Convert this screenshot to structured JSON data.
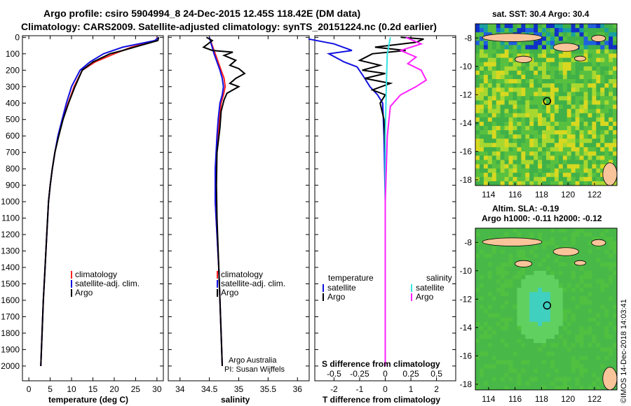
{
  "header": {
    "line1": "Argo profile: csiro 5904994_8 24-Dec-2015 12.45S 118.42E (DM data)",
    "line2": "Climatology: CARS2009. Satellite-adjusted climatology: synTS_20151224.nc (0.2d earlier)"
  },
  "colors": {
    "climatology": "#ff2020",
    "satellite": "#1010e0",
    "argo": "#000000",
    "sat_salinity": "#33e5e5",
    "argo_salinity": "#ff20ff",
    "land": "#f9c49a"
  },
  "depth_ticks": [
    "0",
    "100",
    "200",
    "300",
    "400",
    "500",
    "600",
    "700",
    "800",
    "900",
    "1000",
    "1100",
    "1200",
    "1300",
    "1400",
    "1500",
    "1600",
    "1700",
    "1800",
    "1900",
    "2000"
  ],
  "chart_data": [
    {
      "type": "line",
      "xlabel": "temperature (deg C)",
      "xlim": [
        -1.5,
        31.5
      ],
      "ylim": [
        2090,
        -10
      ],
      "x_ticks": [
        "0",
        "5",
        "10",
        "15",
        "20",
        "25",
        "30"
      ],
      "legend": [
        "climatology",
        "satellite-adj. clim.",
        "Argo"
      ],
      "series": [
        {
          "name": "climatology",
          "values": [
            [
              30.1,
              0
            ],
            [
              29.7,
              20
            ],
            [
              24,
              60
            ],
            [
              20,
              100
            ],
            [
              15.5,
              150
            ],
            [
              12.5,
              200
            ],
            [
              10.6,
              300
            ],
            [
              9.2,
              400
            ],
            [
              7.9,
              500
            ],
            [
              6.9,
              600
            ],
            [
              6.1,
              700
            ],
            [
              5.5,
              800
            ],
            [
              5,
              900
            ],
            [
              4.6,
              1000
            ],
            [
              4.2,
              1200
            ],
            [
              3.8,
              1400
            ],
            [
              3.4,
              1600
            ],
            [
              3.1,
              1800
            ],
            [
              2.8,
              2000
            ]
          ]
        },
        {
          "name": "satellite-adj. clim.",
          "values": [
            [
              30.4,
              0
            ],
            [
              29.5,
              20
            ],
            [
              22,
              60
            ],
            [
              17.5,
              100
            ],
            [
              14.3,
              150
            ],
            [
              12,
              200
            ],
            [
              10,
              300
            ],
            [
              8.8,
              400
            ],
            [
              7.8,
              500
            ],
            [
              6.8,
              600
            ],
            [
              6.1,
              700
            ],
            [
              5.5,
              800
            ],
            [
              5,
              900
            ],
            [
              4.6,
              1000
            ],
            [
              4.2,
              1200
            ],
            [
              3.8,
              1400
            ],
            [
              3.4,
              1600
            ],
            [
              3.1,
              1800
            ],
            [
              2.8,
              2000
            ]
          ]
        },
        {
          "name": "Argo",
          "values": [
            [
              30.4,
              0
            ],
            [
              30.2,
              20
            ],
            [
              26,
              50
            ],
            [
              22,
              80
            ],
            [
              19,
              100
            ],
            [
              15,
              150
            ],
            [
              12.5,
              200
            ],
            [
              10.8,
              300
            ],
            [
              9.3,
              400
            ],
            [
              8,
              500
            ],
            [
              7,
              600
            ],
            [
              6.1,
              700
            ],
            [
              5.5,
              800
            ],
            [
              5,
              900
            ],
            [
              4.6,
              1000
            ],
            [
              4.2,
              1200
            ],
            [
              3.8,
              1400
            ],
            [
              3.4,
              1600
            ],
            [
              3.1,
              1800
            ],
            [
              2.8,
              2000
            ]
          ]
        }
      ]
    },
    {
      "type": "line",
      "xlabel": "salinity",
      "xlim": [
        33.8,
        36.2
      ],
      "ylim": [
        2090,
        -10
      ],
      "x_ticks": [
        "34",
        "34.5",
        "35",
        "35.5",
        "36"
      ],
      "legend": [
        "climatology",
        "satellite-adj. clim.",
        "Argo"
      ],
      "annotation": [
        "Argo Australia",
        "PI: Susan Wijffels"
      ],
      "series": [
        {
          "name": "climatology",
          "values": [
            [
              34.5,
              0
            ],
            [
              34.55,
              50
            ],
            [
              34.6,
              100
            ],
            [
              34.65,
              150
            ],
            [
              34.7,
              200
            ],
            [
              34.75,
              250
            ],
            [
              34.77,
              300
            ],
            [
              34.74,
              350
            ],
            [
              34.7,
              400
            ],
            [
              34.67,
              500
            ],
            [
              34.65,
              600
            ],
            [
              34.6,
              800
            ],
            [
              34.6,
              1000
            ],
            [
              34.63,
              1200
            ],
            [
              34.66,
              1400
            ],
            [
              34.68,
              1600
            ],
            [
              34.7,
              1800
            ],
            [
              34.72,
              2000
            ]
          ]
        },
        {
          "name": "satellite-adj. clim.",
          "values": [
            [
              34.5,
              0
            ],
            [
              34.54,
              50
            ],
            [
              34.58,
              100
            ],
            [
              34.63,
              150
            ],
            [
              34.68,
              200
            ],
            [
              34.72,
              250
            ],
            [
              34.74,
              300
            ],
            [
              34.72,
              350
            ],
            [
              34.68,
              400
            ],
            [
              34.65,
              500
            ],
            [
              34.63,
              600
            ],
            [
              34.6,
              800
            ],
            [
              34.6,
              1000
            ],
            [
              34.63,
              1200
            ],
            [
              34.66,
              1400
            ],
            [
              34.68,
              1600
            ],
            [
              34.7,
              1800
            ],
            [
              34.72,
              2000
            ]
          ]
        },
        {
          "name": "Argo",
          "values": [
            [
              34.45,
              0
            ],
            [
              34.55,
              20
            ],
            [
              34.4,
              60
            ],
            [
              34.55,
              80
            ],
            [
              34.9,
              90
            ],
            [
              34.75,
              110
            ],
            [
              34.95,
              140
            ],
            [
              34.85,
              170
            ],
            [
              35.0,
              190
            ],
            [
              35.1,
              220
            ],
            [
              34.95,
              250
            ],
            [
              34.85,
              280
            ],
            [
              35.0,
              300
            ],
            [
              34.8,
              340
            ],
            [
              34.75,
              380
            ],
            [
              34.7,
              450
            ],
            [
              34.68,
              550
            ],
            [
              34.63,
              700
            ],
            [
              34.62,
              900
            ],
            [
              34.63,
              1100
            ],
            [
              34.65,
              1300
            ],
            [
              34.67,
              1500
            ],
            [
              34.69,
              1700
            ],
            [
              34.71,
              1900
            ],
            [
              34.72,
              2000
            ]
          ]
        }
      ]
    },
    {
      "type": "line",
      "xlabel": "T difference from climatology",
      "xlim": [
        -2.75,
        2.75
      ],
      "ylim": [
        2090,
        -10
      ],
      "x_ticks": [
        "-2",
        "-1",
        "0",
        "1",
        "2"
      ],
      "x2label": "S difference from climatology",
      "x2lim": [
        -0.6875,
        0.6875
      ],
      "x2_ticks": [
        "-0.5",
        "-0.25",
        "0",
        "0.25",
        "0.5"
      ],
      "legend_temperature_title": "temperature",
      "legend_salinity_title": "salinity",
      "legend_temperature": [
        "satellite",
        "Argo"
      ],
      "legend_salinity": [
        "satellite",
        "Argo"
      ],
      "series": [
        {
          "name": "satellite",
          "values": [
            [
              -3,
              10
            ],
            [
              -2,
              40
            ],
            [
              -1.3,
              80
            ],
            [
              -2.2,
              100
            ],
            [
              -1.6,
              150
            ],
            [
              -1.1,
              180
            ],
            [
              -0.8,
              250
            ],
            [
              -0.6,
              300
            ],
            [
              -0.3,
              350
            ],
            [
              -0.1,
              400
            ],
            [
              -0.05,
              600
            ],
            [
              0,
              1000
            ],
            [
              0,
              2000
            ]
          ]
        },
        {
          "name": "Argo",
          "values": [
            [
              0.6,
              0
            ],
            [
              1.5,
              10
            ],
            [
              1.2,
              30
            ],
            [
              -0.4,
              60
            ],
            [
              0.8,
              80
            ],
            [
              -0.5,
              100
            ],
            [
              -1,
              140
            ],
            [
              -0.2,
              170
            ],
            [
              -0.9,
              200
            ],
            [
              0,
              220
            ],
            [
              -0.8,
              250
            ],
            [
              0.2,
              280
            ],
            [
              -0.5,
              320
            ],
            [
              0,
              350
            ],
            [
              -0.2,
              400
            ],
            [
              -0.05,
              500
            ],
            [
              0,
              700
            ],
            [
              0,
              1000
            ],
            [
              0,
              2000
            ]
          ]
        },
        {
          "name": "satellite",
          "values": [
            [
              0.05,
              0
            ],
            [
              0.02,
              100
            ],
            [
              0.01,
              300
            ],
            [
              0,
              600
            ],
            [
              0,
              2000
            ]
          ]
        },
        {
          "name": "Argo",
          "values": [
            [
              0.2,
              0
            ],
            [
              0.35,
              40
            ],
            [
              0.15,
              80
            ],
            [
              0.3,
              120
            ],
            [
              0.22,
              160
            ],
            [
              0.35,
              200
            ],
            [
              0.4,
              260
            ],
            [
              0.3,
              300
            ],
            [
              0.15,
              350
            ],
            [
              0.05,
              420
            ],
            [
              0.02,
              600
            ],
            [
              0,
              1000
            ],
            [
              0,
              2000
            ]
          ]
        }
      ]
    },
    {
      "type": "heatmap",
      "title": "sat. SST: 30.4  Argo: 30.4",
      "xlim": [
        113,
        123.7
      ],
      "ylim": [
        -18.4,
        -7
      ],
      "x_ticks": [
        "114",
        "116",
        "118",
        "120",
        "122"
      ],
      "y_ticks": [
        "-8",
        "-10",
        "-12",
        "-14",
        "-16",
        "-18"
      ],
      "marker": [
        118.42,
        -12.45
      ]
    },
    {
      "type": "heatmap",
      "title": "Altim. SLA: -0.19",
      "subtitle": "Argo h1000: -0.11  h2000: -0.12",
      "xlim": [
        113,
        123.7
      ],
      "ylim": [
        -18.4,
        -7
      ],
      "x_ticks": [
        "114",
        "116",
        "118",
        "120",
        "122"
      ],
      "y_ticks": [
        "-8",
        "-10",
        "-12",
        "-14",
        "-16",
        "-18"
      ],
      "marker": [
        118.42,
        -12.45
      ]
    }
  ],
  "credit": "©IMOS 14-Dec-2018 14:03:41"
}
